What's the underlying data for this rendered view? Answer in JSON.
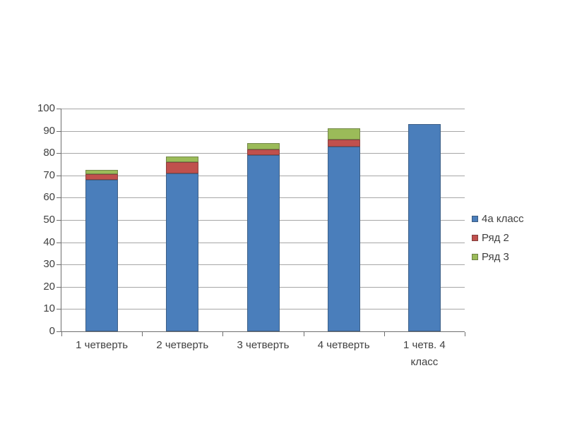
{
  "page": {
    "background": "#ffffff"
  },
  "chart_data": {
    "type": "bar",
    "stacked": true,
    "title": "",
    "xlabel": "",
    "ylabel": "",
    "categories": [
      "1 четверть",
      "2 четверть",
      "3 четверть",
      "4 четверть",
      "1 четв. 4 класс"
    ],
    "series": [
      {
        "name": "4а класс",
        "color": "#4a7ebb",
        "values": [
          68,
          71,
          79,
          83,
          93
        ]
      },
      {
        "name": "Ряд 2",
        "color": "#c0504d",
        "values": [
          2.5,
          5,
          2.5,
          3,
          0
        ]
      },
      {
        "name": "Ряд 3",
        "color": "#9bbb59",
        "values": [
          2,
          2.5,
          3,
          5,
          0
        ]
      }
    ],
    "ylim": [
      0,
      100
    ],
    "ytick_step": 10,
    "grid": true,
    "legend_position": "right",
    "grid_color": "#a6a6a6",
    "axis_color": "#6e6e6e",
    "text_color": "#404040"
  }
}
